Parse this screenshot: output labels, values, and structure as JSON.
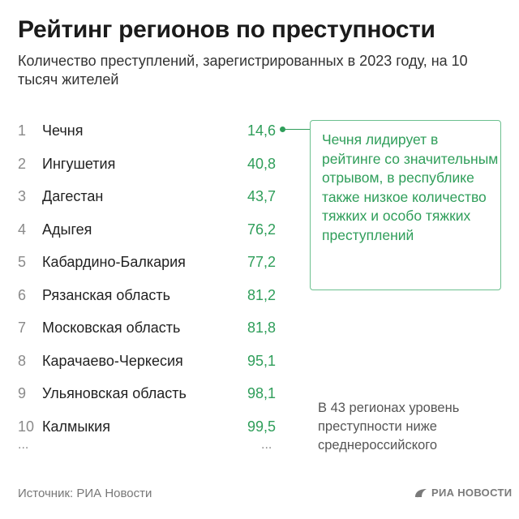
{
  "title": "Рейтинг регионов по преступности",
  "subtitle": "Количество преступлений, зарегистрированных в 2023 году, на 10 тысяч жителей",
  "chart_data": {
    "type": "table",
    "columns": [
      "rank",
      "region",
      "value"
    ],
    "rows": [
      {
        "rank": "1",
        "region": "Чечня",
        "value": "14,6"
      },
      {
        "rank": "2",
        "region": "Ингушетия",
        "value": "40,8"
      },
      {
        "rank": "3",
        "region": "Дагестан",
        "value": "43,7"
      },
      {
        "rank": "4",
        "region": "Адыгея",
        "value": "76,2"
      },
      {
        "rank": "5",
        "region": "Кабардино-Балкария",
        "value": "77,2"
      },
      {
        "rank": "6",
        "region": "Рязанская область",
        "value": "81,2"
      },
      {
        "rank": "7",
        "region": "Московская область",
        "value": "81,8"
      },
      {
        "rank": "8",
        "region": "Карачаево-Черкесия",
        "value": "95,1"
      },
      {
        "rank": "9",
        "region": "Ульяновская область",
        "value": "98,1"
      },
      {
        "rank": "10",
        "region": "Калмыкия",
        "value": "99,5"
      }
    ],
    "ellipsis_rank": "...",
    "ellipsis_value": "..."
  },
  "callout": "Чечня лидирует в рейтинге со значительным отрывом, в республике также низкое количество тяжких и особо тяжких преступлений",
  "note": "В 43 регионах уровень преступности ниже среднероссийского",
  "source": "Источник: РИА Новости",
  "logo_text": "РИА НОВОСТИ",
  "colors": {
    "accent": "#2f9e5a",
    "text": "#1f1f1f",
    "muted": "#8a8a8a"
  }
}
